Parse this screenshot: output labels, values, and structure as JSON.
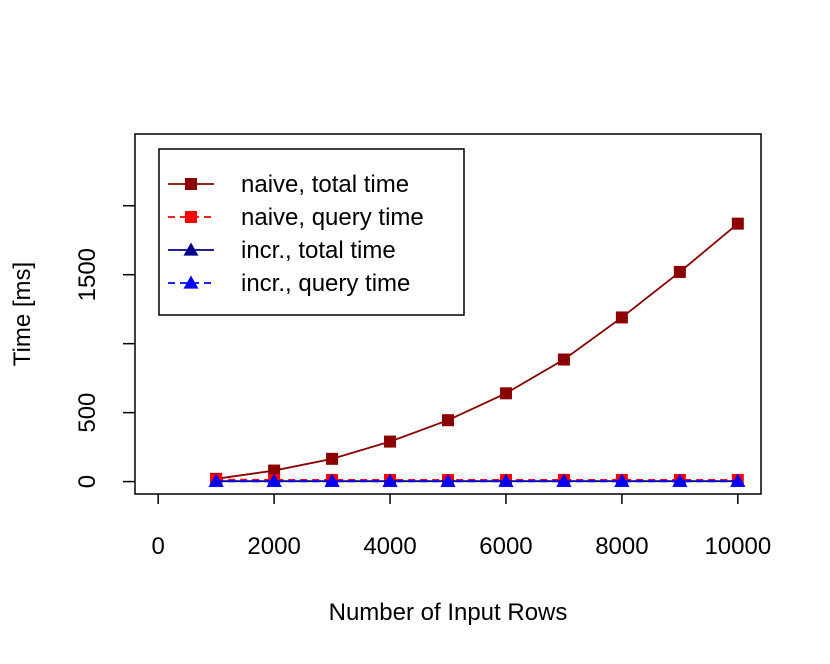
{
  "chart_data": {
    "type": "line",
    "title": "",
    "xlabel": "Number of Input Rows",
    "ylabel": "Time [ms]",
    "xlim": [
      -400,
      10400
    ],
    "ylim": [
      -90,
      2520
    ],
    "x_ticks": [
      0,
      2000,
      4000,
      6000,
      8000,
      10000
    ],
    "x_tick_labels": [
      "0",
      "2000",
      "4000",
      "6000",
      "8000",
      "10000"
    ],
    "y_ticks": [
      0,
      500,
      1000,
      1500,
      2000
    ],
    "y_tick_labels": [
      "0",
      "500",
      "",
      "1500",
      ""
    ],
    "grid": false,
    "legend_position": "top-left",
    "x": [
      1000,
      2000,
      3000,
      4000,
      5000,
      6000,
      7000,
      8000,
      9000,
      10000
    ],
    "series": [
      {
        "name": "naive, total time",
        "values": [
          20,
          80,
          165,
          290,
          445,
          640,
          885,
          1190,
          1520,
          1870
        ],
        "color": "#8B0000",
        "line": "solid",
        "marker": "square"
      },
      {
        "name": "naive, query time",
        "values": [
          15,
          12,
          12,
          12,
          12,
          12,
          12,
          12,
          12,
          12
        ],
        "color": "#FF0000",
        "line": "dashed",
        "marker": "square"
      },
      {
        "name": "incr., total time",
        "values": [
          3,
          3,
          3,
          3,
          3,
          3,
          3,
          3,
          3,
          3
        ],
        "color": "#00008B",
        "line": "solid",
        "marker": "triangle"
      },
      {
        "name": "incr., query time",
        "values": [
          2,
          2,
          2,
          2,
          2,
          2,
          2,
          2,
          2,
          2
        ],
        "color": "#0000FF",
        "line": "dashed",
        "marker": "triangle"
      }
    ]
  }
}
